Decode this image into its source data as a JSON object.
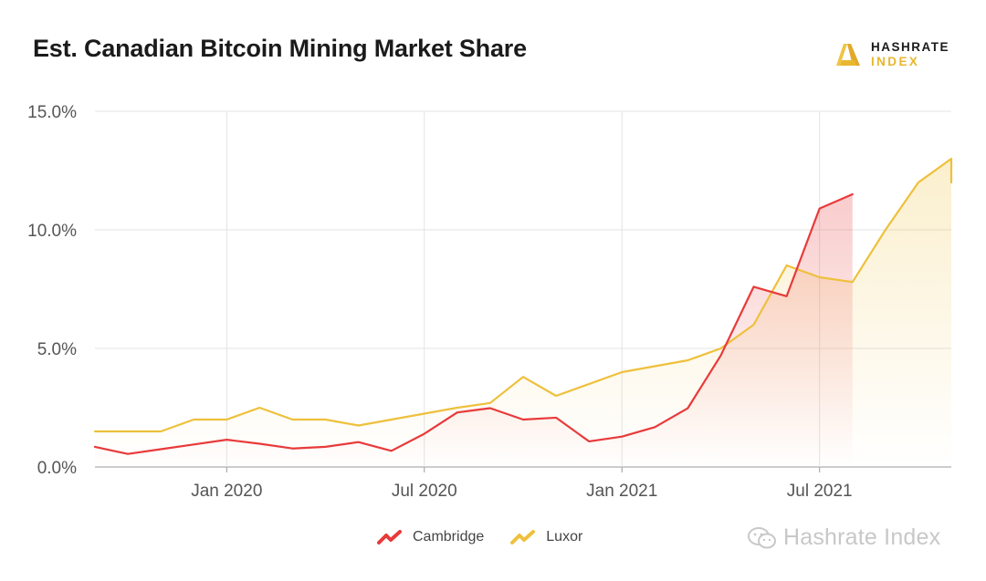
{
  "title": "Est. Canadian Bitcoin Mining Market Share",
  "brand": {
    "line1": "HASHRATE",
    "line2": "INDEX"
  },
  "watermark": "Hashrate Index",
  "colors": {
    "cambridge": "#e83a3a",
    "luxor": "#eec03c",
    "grid": "#e3e3e3",
    "brand_gold": "#e8b62f"
  },
  "chart_data": {
    "type": "line",
    "title": "Est. Canadian Bitcoin Mining Market Share",
    "xlabel": "",
    "ylabel": "",
    "ylim": [
      0,
      15
    ],
    "y_ticks": [
      "0.0%",
      "5.0%",
      "10.0%",
      "15.0%"
    ],
    "x_ticks": [
      {
        "label": "Jan 2020",
        "date": "2020-01"
      },
      {
        "label": "Jul 2020",
        "date": "2020-07"
      },
      {
        "label": "Jan 2021",
        "date": "2021-01"
      },
      {
        "label": "Jul 2021",
        "date": "2021-07"
      }
    ],
    "x_range": [
      "2019-09",
      "2021-11"
    ],
    "grid": true,
    "legend_position": "bottom",
    "series": [
      {
        "name": "Cambridge",
        "color": "#e83a3a",
        "points": [
          [
            "2019-09",
            0.85
          ],
          [
            "2019-10",
            0.55
          ],
          [
            "2019-11",
            0.75
          ],
          [
            "2019-12",
            0.95
          ],
          [
            "2020-01",
            1.15
          ],
          [
            "2020-02",
            0.98
          ],
          [
            "2020-03",
            0.78
          ],
          [
            "2020-04",
            0.85
          ],
          [
            "2020-05",
            1.05
          ],
          [
            "2020-06",
            0.68
          ],
          [
            "2020-07",
            1.4
          ],
          [
            "2020-08",
            2.3
          ],
          [
            "2020-09",
            2.48
          ],
          [
            "2020-10",
            2.0
          ],
          [
            "2020-11",
            2.08
          ],
          [
            "2020-12",
            1.08
          ],
          [
            "2021-01",
            1.28
          ],
          [
            "2021-02",
            1.68
          ],
          [
            "2021-03",
            2.48
          ],
          [
            "2021-04",
            4.7
          ],
          [
            "2021-05",
            7.6
          ],
          [
            "2021-06",
            7.2
          ],
          [
            "2021-07",
            10.9
          ],
          [
            "2021-08",
            11.5
          ]
        ]
      },
      {
        "name": "Luxor",
        "color": "#eec03c",
        "points": [
          [
            "2019-09",
            1.5
          ],
          [
            "2019-10",
            1.5
          ],
          [
            "2019-11",
            1.5
          ],
          [
            "2019-12",
            2.0
          ],
          [
            "2020-01",
            2.0
          ],
          [
            "2020-02",
            2.5
          ],
          [
            "2020-03",
            2.0
          ],
          [
            "2020-04",
            2.0
          ],
          [
            "2020-05",
            1.75
          ],
          [
            "2020-07",
            2.25
          ],
          [
            "2020-08",
            2.5
          ],
          [
            "2020-09",
            2.7
          ],
          [
            "2020-10",
            3.8
          ],
          [
            "2020-11",
            3.0
          ],
          [
            "2021-01",
            4.0
          ],
          [
            "2021-03",
            4.5
          ],
          [
            "2021-04",
            5.0
          ],
          [
            "2021-05",
            6.0
          ],
          [
            "2021-06",
            8.5
          ],
          [
            "2021-07",
            8.0
          ],
          [
            "2021-08",
            7.8
          ],
          [
            "2021-09",
            10.0
          ],
          [
            "2021-10",
            12.0
          ],
          [
            "2021-11",
            13.0
          ],
          [
            "2021-12",
            12.0
          ]
        ]
      }
    ]
  }
}
